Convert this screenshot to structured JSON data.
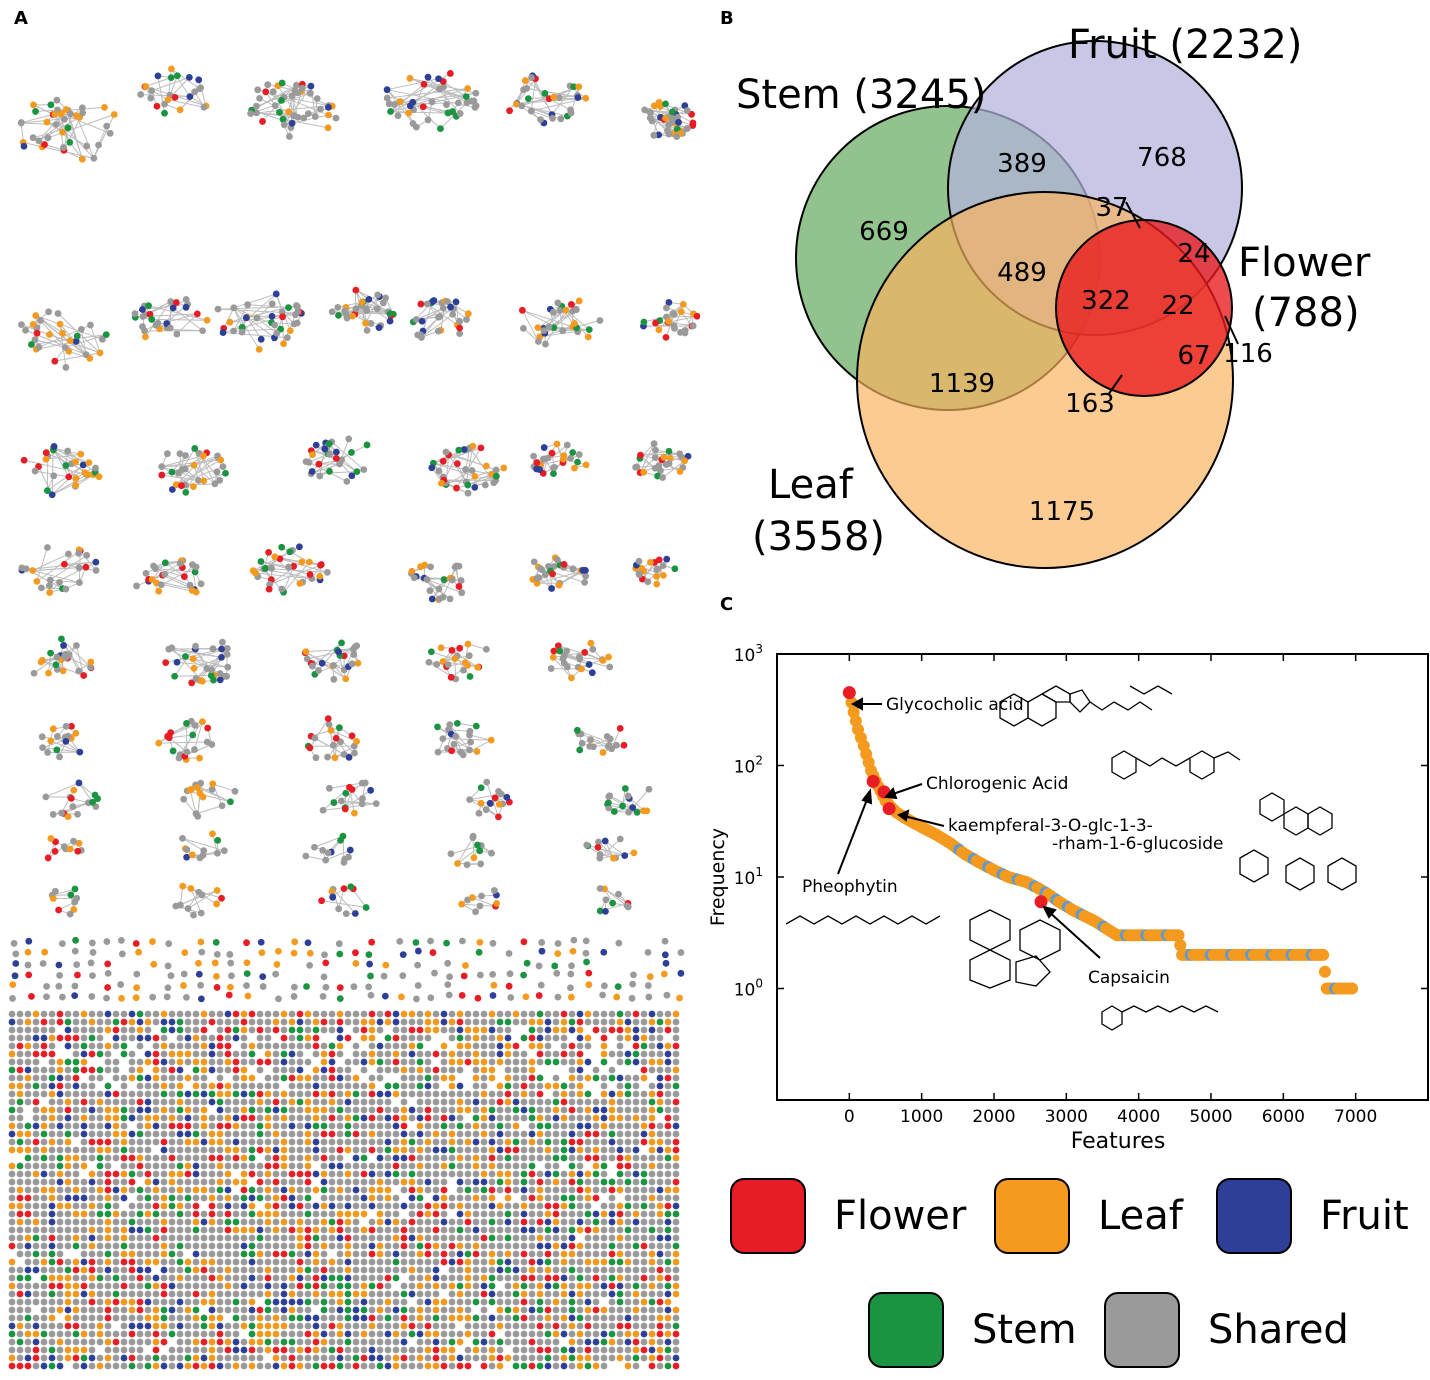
{
  "panels": {
    "a": "A",
    "b": "B",
    "c": "C"
  },
  "colors": {
    "flower": "#e81c24",
    "leaf": "#f39a1f",
    "fruit": "#2e3f97",
    "stem": "#1a9441",
    "shared": "#9a9a9a"
  },
  "network_legend": [
    {
      "key": "flower",
      "label": "Flower"
    },
    {
      "key": "leaf",
      "label": "Leaf"
    },
    {
      "key": "fruit",
      "label": "Fruit"
    },
    {
      "key": "stem",
      "label": "Stem"
    },
    {
      "key": "shared",
      "label": "Shared"
    }
  ],
  "venn": {
    "sets": {
      "stem": {
        "name": "Stem (3245)"
      },
      "fruit": {
        "name": "Fruit (2232)"
      },
      "flower": {
        "name_line1": "Flower",
        "name_line2": "(788)"
      },
      "leaf": {
        "name_line1": "Leaf",
        "name_line2": "(3558)"
      }
    },
    "regions": {
      "stem_only": "669",
      "stem_fruit": "389",
      "fruit_only": "768",
      "stem_fruit_flower": "37",
      "fruit_flower": "24",
      "stem_leaf_fruit": "489",
      "all": "322",
      "leaf_fruit_flower": "22",
      "flower_only": "116",
      "leaf_flower": "67",
      "stem_leaf": "1139",
      "stem_leaf_flower": "163",
      "leaf_only": "1175"
    }
  },
  "chart_data": {
    "type": "scatter",
    "title": "",
    "xlabel": "Features",
    "ylabel": "Frequency",
    "xlim": [
      -1000,
      8000
    ],
    "ylim_log10": [
      -1,
      3
    ],
    "yscale": "log",
    "x_ticks": [
      "0",
      "1000",
      "2000",
      "3000",
      "4000",
      "5000",
      "6000",
      "7000"
    ],
    "x_tick_values": [
      0,
      1000,
      2000,
      3000,
      4000,
      5000,
      6000,
      7000
    ],
    "y_ticks": [
      {
        "base": "10",
        "exp": "0",
        "value": 1
      },
      {
        "base": "10",
        "exp": "1",
        "value": 10
      },
      {
        "base": "10",
        "exp": "2",
        "value": 100
      },
      {
        "base": "10",
        "exp": "3",
        "value": 1000
      }
    ],
    "rank_frequency_curve": [
      [
        0,
        450
      ],
      [
        60,
        300
      ],
      [
        120,
        210
      ],
      [
        200,
        150
      ],
      [
        300,
        90
      ],
      [
        400,
        65
      ],
      [
        500,
        48
      ],
      [
        650,
        38
      ],
      [
        800,
        33
      ],
      [
        1000,
        28
      ],
      [
        1200,
        24
      ],
      [
        1400,
        20
      ],
      [
        1600,
        16
      ],
      [
        1800,
        13.5
      ],
      [
        2000,
        11.5
      ],
      [
        2200,
        10
      ],
      [
        2450,
        9
      ],
      [
        2600,
        8
      ],
      [
        2750,
        7
      ],
      [
        2900,
        6
      ],
      [
        3100,
        5
      ],
      [
        3400,
        4
      ],
      [
        3700,
        3
      ],
      [
        4550,
        3
      ],
      [
        4600,
        2
      ],
      [
        6550,
        2
      ],
      [
        6600,
        1
      ],
      [
        6950,
        1
      ]
    ],
    "highlighted": [
      {
        "name": "Glycocholic acid",
        "x": 0,
        "y": 450
      },
      {
        "name": "Chlorogenic Acid",
        "x": 480,
        "y": 58
      },
      {
        "name": "Pheophytin",
        "x": 330,
        "y": 72
      },
      {
        "name": "kaempferal-3-O-glc-1-3-",
        "name2": "-rham-1-6-glucoside",
        "x": 550,
        "y": 41
      },
      {
        "name": "Capsaicin",
        "x": 2650,
        "y": 6
      }
    ]
  }
}
